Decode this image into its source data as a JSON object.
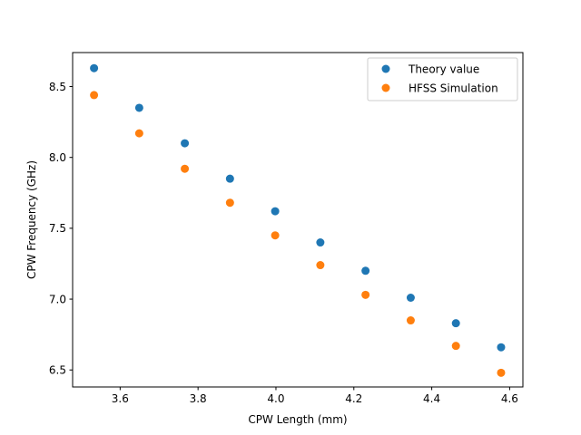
{
  "chart_data": {
    "type": "scatter",
    "title": "",
    "xlabel": "CPW Length (mm)",
    "ylabel": "CPW Frequency (GHz)",
    "xlim": [
      3.478,
      4.634
    ],
    "ylim": [
      6.38,
      8.74
    ],
    "xticks": [
      3.6,
      3.8,
      4.0,
      4.2,
      4.4,
      4.6
    ],
    "xtick_labels": [
      "3.6",
      "3.8",
      "4.0",
      "4.2",
      "4.4",
      "4.6"
    ],
    "yticks": [
      6.5,
      7.0,
      7.5,
      8.0,
      8.5
    ],
    "ytick_labels": [
      "6.5",
      "7.0",
      "7.5",
      "8.0",
      "8.5"
    ],
    "grid": false,
    "legend_position": "top-right",
    "x": [
      3.533,
      3.649,
      3.766,
      3.882,
      3.998,
      4.114,
      4.23,
      4.346,
      4.462,
      4.578
    ],
    "series": [
      {
        "name": "Theory value",
        "color": "#1f77b4",
        "values": [
          8.63,
          8.35,
          8.1,
          7.85,
          7.62,
          7.4,
          7.2,
          7.01,
          6.83,
          6.66
        ]
      },
      {
        "name": "HFSS Simulation",
        "color": "#ff7f0e",
        "values": [
          8.44,
          8.17,
          7.92,
          7.68,
          7.45,
          7.24,
          7.03,
          6.85,
          6.67,
          6.48
        ]
      }
    ]
  }
}
